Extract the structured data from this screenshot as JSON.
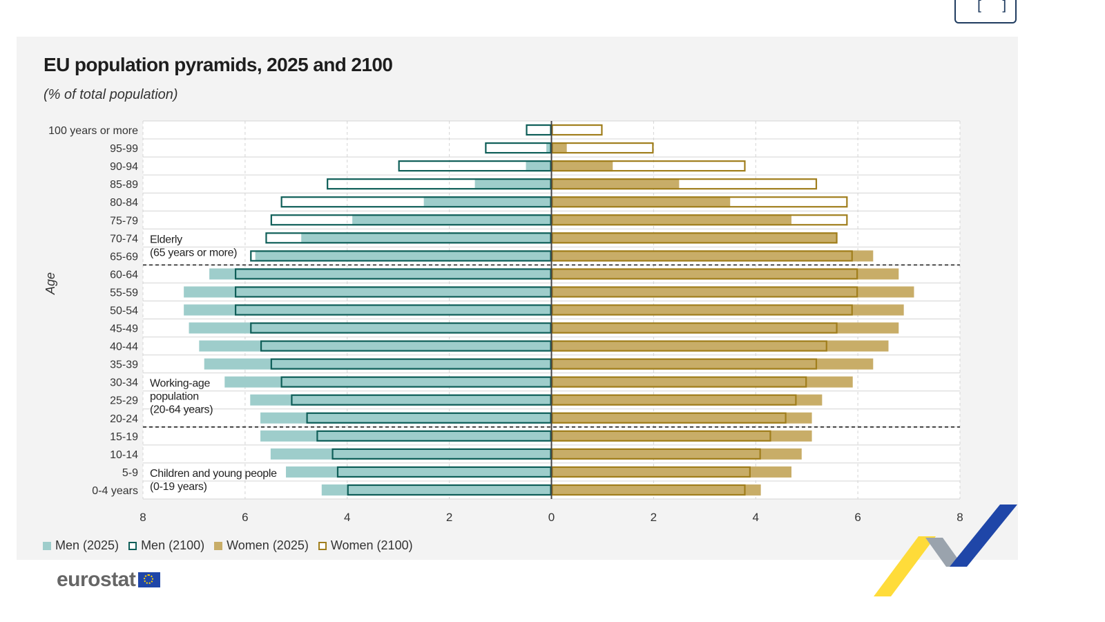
{
  "page": {
    "title": "EU population pyramids, 2025 and 2100",
    "subtitle": "(% of total population)",
    "logo_text": "eurostat",
    "expand_icon": "fullscreen-icon"
  },
  "colors": {
    "panel_bg": "#f3f3f3",
    "men_2025": "#9ecdcb",
    "men_2100_outline": "#0e5e58",
    "women_2025": "#c8ad68",
    "women_2100_outline": "#a07e1c",
    "grid": "#d4d4d4"
  },
  "legend": [
    {
      "label": "Men (2025)",
      "style": "fill",
      "color": "#9ecdcb"
    },
    {
      "label": "Men (2100)",
      "style": "outline",
      "color": "#0e5e58"
    },
    {
      "label": "Women (2025)",
      "style": "fill",
      "color": "#c8ad68"
    },
    {
      "label": "Women (2100)",
      "style": "outline",
      "color": "#a07e1c"
    }
  ],
  "chart_data": {
    "type": "bar",
    "orientation": "horizontal-pyramid",
    "title": "EU population pyramids, 2025 and 2100",
    "subtitle": "(% of total population)",
    "ylabel": "Age",
    "xlabel": "",
    "xlim": [
      -8,
      8
    ],
    "xticks": [
      -8,
      -6,
      -4,
      -2,
      0,
      2,
      4,
      6,
      8
    ],
    "xtick_labels": [
      "8",
      "6",
      "4",
      "2",
      "0",
      "2",
      "4",
      "6",
      "8"
    ],
    "categories": [
      "100 years or more",
      "95-99",
      "90-94",
      "85-89",
      "80-84",
      "75-79",
      "70-74",
      "65-69",
      "60-64",
      "55-59",
      "50-54",
      "45-49",
      "40-44",
      "35-39",
      "30-34",
      "25-29",
      "20-24",
      "15-19",
      "10-14",
      "5-9",
      "0-4 years"
    ],
    "series": [
      {
        "name": "Men (2025)",
        "side": "left",
        "style": "fill",
        "values": [
          0.0,
          0.1,
          0.5,
          1.5,
          2.5,
          3.9,
          4.9,
          5.8,
          6.7,
          7.2,
          7.2,
          7.1,
          6.9,
          6.8,
          6.4,
          5.9,
          5.7,
          5.7,
          5.5,
          5.2,
          4.5
        ]
      },
      {
        "name": "Men (2100)",
        "side": "left",
        "style": "outline",
        "values": [
          0.5,
          1.3,
          3.0,
          4.4,
          5.3,
          5.5,
          5.6,
          5.9,
          6.2,
          6.2,
          6.2,
          5.9,
          5.7,
          5.5,
          5.3,
          5.1,
          4.8,
          4.6,
          4.3,
          4.2,
          4.0
        ]
      },
      {
        "name": "Women (2025)",
        "side": "right",
        "style": "fill",
        "values": [
          0.0,
          0.3,
          1.2,
          2.5,
          3.5,
          4.7,
          5.6,
          6.3,
          6.8,
          7.1,
          6.9,
          6.8,
          6.6,
          6.3,
          5.9,
          5.3,
          5.1,
          5.1,
          4.9,
          4.7,
          4.1
        ]
      },
      {
        "name": "Women (2100)",
        "side": "right",
        "style": "outline",
        "values": [
          1.0,
          2.0,
          3.8,
          5.2,
          5.8,
          5.8,
          5.6,
          5.9,
          6.0,
          6.0,
          5.9,
          5.6,
          5.4,
          5.2,
          5.0,
          4.8,
          4.6,
          4.3,
          4.1,
          3.9,
          3.8
        ]
      }
    ],
    "groups": [
      {
        "label_lines": [
          "Elderly",
          "(65 years or more)"
        ],
        "from": "65-69",
        "to": "100 years or more"
      },
      {
        "label_lines": [
          "Working-age",
          "population",
          "(20-64 years)"
        ],
        "from": "20-24",
        "to": "60-64"
      },
      {
        "label_lines": [
          "Children and young people",
          "(0-19 years)"
        ],
        "from": "0-4 years",
        "to": "15-19"
      }
    ],
    "separators_after": [
      "65-69",
      "20-24"
    ]
  }
}
